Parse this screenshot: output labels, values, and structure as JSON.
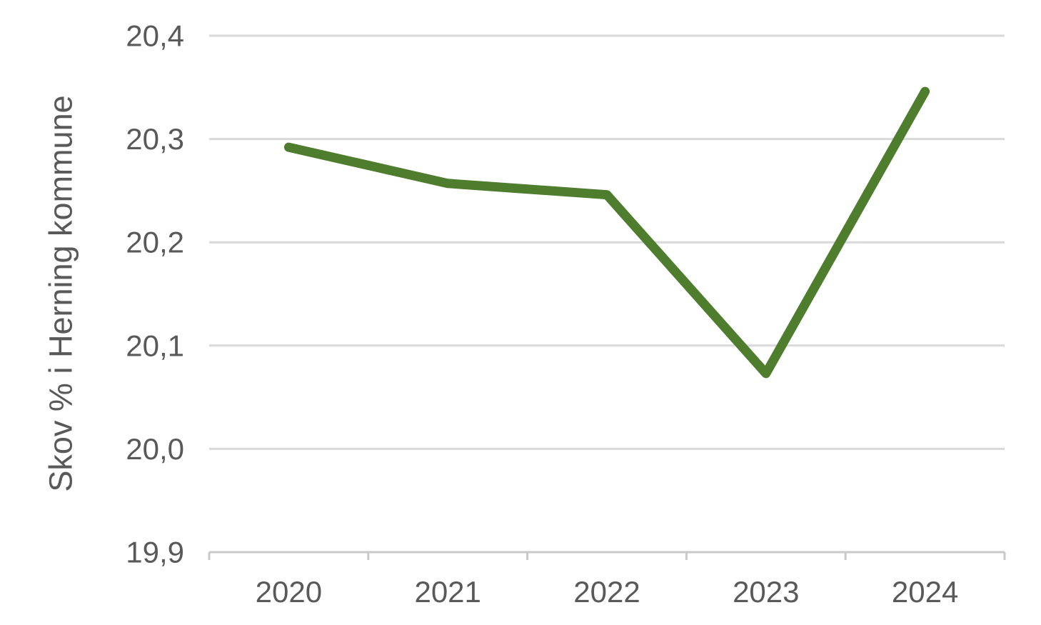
{
  "chart_data": {
    "type": "line",
    "categories": [
      "2020",
      "2021",
      "2022",
      "2023",
      "2024"
    ],
    "series": [
      {
        "name": "Skov % i Herning kommune",
        "values": [
          20.292,
          20.257,
          20.246,
          20.073,
          20.346
        ]
      }
    ],
    "title": "",
    "xlabel": "",
    "ylabel": "Skov % i Herning kommune",
    "ylim": [
      19.9,
      20.4
    ],
    "y_ticks": [
      {
        "value": 20.4,
        "label": "20,4"
      },
      {
        "value": 20.3,
        "label": "20,3"
      },
      {
        "value": 20.2,
        "label": "20,2"
      },
      {
        "value": 20.1,
        "label": "20,1"
      },
      {
        "value": 20.0,
        "label": "20,0"
      },
      {
        "value": 19.9,
        "label": "19,9"
      }
    ],
    "grid": "horizontal-only",
    "legend": "none",
    "decimal_separator": ",",
    "colors": {
      "line": "#4e7d2e",
      "gridline": "#d9d9d9",
      "axis": "#c9c9c9",
      "text": "#595959",
      "background": "#ffffff"
    }
  }
}
